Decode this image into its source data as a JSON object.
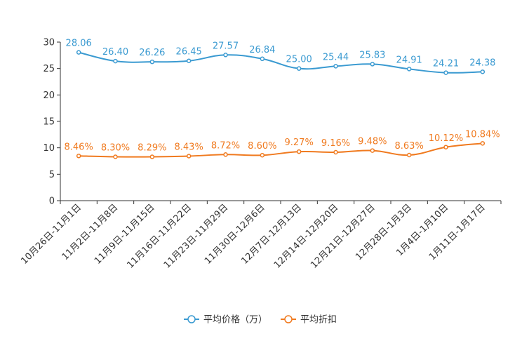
{
  "chart_data": {
    "type": "line",
    "title": "",
    "xlabel": "",
    "ylabel": "",
    "ylim": [
      0,
      30
    ],
    "yticks": [
      0,
      5,
      10,
      15,
      20,
      25,
      30
    ],
    "grid": false,
    "legend_position": "bottom-center",
    "categories": [
      "10月26日-11月1日",
      "11月2日-11月8日",
      "11月9日-11月15日",
      "11月16日-11月22日",
      "11月23日-11月29日",
      "11月30日-12月6日",
      "12月7日-12月13日",
      "12月14日-12月20日",
      "12月21日-12月27日",
      "12月28日-1月3日",
      "1月4日-1月10日",
      "1月11日-1月17日"
    ],
    "series": [
      {
        "name": "平均价格（万）",
        "color": "#3a9ad1",
        "values": [
          28.06,
          26.4,
          26.26,
          26.45,
          27.57,
          26.84,
          25.0,
          25.44,
          25.83,
          24.91,
          24.21,
          24.38
        ],
        "labels": [
          "28.06",
          "26.40",
          "26.26",
          "26.45",
          "27.57",
          "26.84",
          "25.00",
          "25.44",
          "25.83",
          "24.91",
          "24.21",
          "24.38"
        ]
      },
      {
        "name": "平均折扣",
        "color": "#f07a1f",
        "values": [
          8.46,
          8.3,
          8.29,
          8.43,
          8.72,
          8.6,
          9.27,
          9.16,
          9.48,
          8.63,
          10.12,
          10.84
        ],
        "labels": [
          "8.46%",
          "8.30%",
          "8.29%",
          "8.43%",
          "8.72%",
          "8.60%",
          "9.27%",
          "9.16%",
          "9.48%",
          "8.63%",
          "10.12%",
          "10.84%"
        ]
      }
    ]
  }
}
